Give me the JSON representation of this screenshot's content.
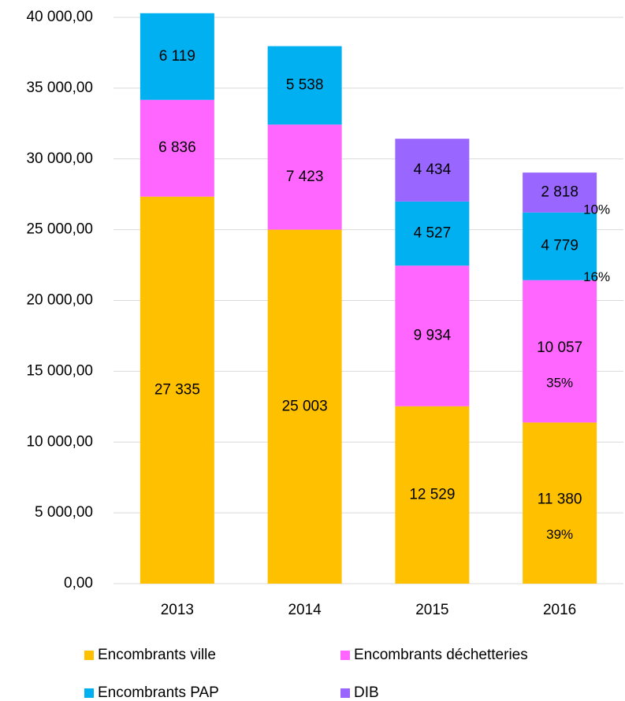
{
  "chart_data": {
    "type": "stacked_bar",
    "categories": [
      "2013",
      "2014",
      "2015",
      "2016"
    ],
    "series": [
      {
        "name": "Encombrants ville",
        "color": "#FFC000",
        "values": [
          27335,
          25003,
          12529,
          11380
        ],
        "value_labels": [
          "27 335",
          "25 003",
          "12 529",
          "11 380"
        ]
      },
      {
        "name": "Encombrants déchetteries",
        "color": "#FF66FF",
        "values": [
          6836,
          7423,
          9934,
          10057
        ],
        "value_labels": [
          "6 836",
          "7 423",
          "9 934",
          "10 057"
        ]
      },
      {
        "name": "Encombrants PAP",
        "color": "#00B0F0",
        "values": [
          6119,
          5538,
          4527,
          4779
        ],
        "value_labels": [
          "6 119",
          "5 538",
          "4 527",
          "4 779"
        ]
      },
      {
        "name": "DIB",
        "color": "#9966FF",
        "values": [
          null,
          null,
          4434,
          2818
        ],
        "value_labels": [
          null,
          null,
          "4 434",
          "2 818"
        ]
      }
    ],
    "annotations": [
      "39%",
      "35%",
      "16%",
      "10%"
    ],
    "ylim": [
      0,
      40000
    ],
    "yticks": [
      {
        "value": 0,
        "label": "0,00"
      },
      {
        "value": 5000,
        "label": "5 000,00"
      },
      {
        "value": 10000,
        "label": "10 000,00"
      },
      {
        "value": 15000,
        "label": "15 000,00"
      },
      {
        "value": 20000,
        "label": "20 000,00"
      },
      {
        "value": 25000,
        "label": "25 000,00"
      },
      {
        "value": 30000,
        "label": "30 000,00"
      },
      {
        "value": 35000,
        "label": "35 000,00"
      },
      {
        "value": 40000,
        "label": "40 000,00"
      }
    ],
    "grid": true,
    "legend": "bottom"
  }
}
